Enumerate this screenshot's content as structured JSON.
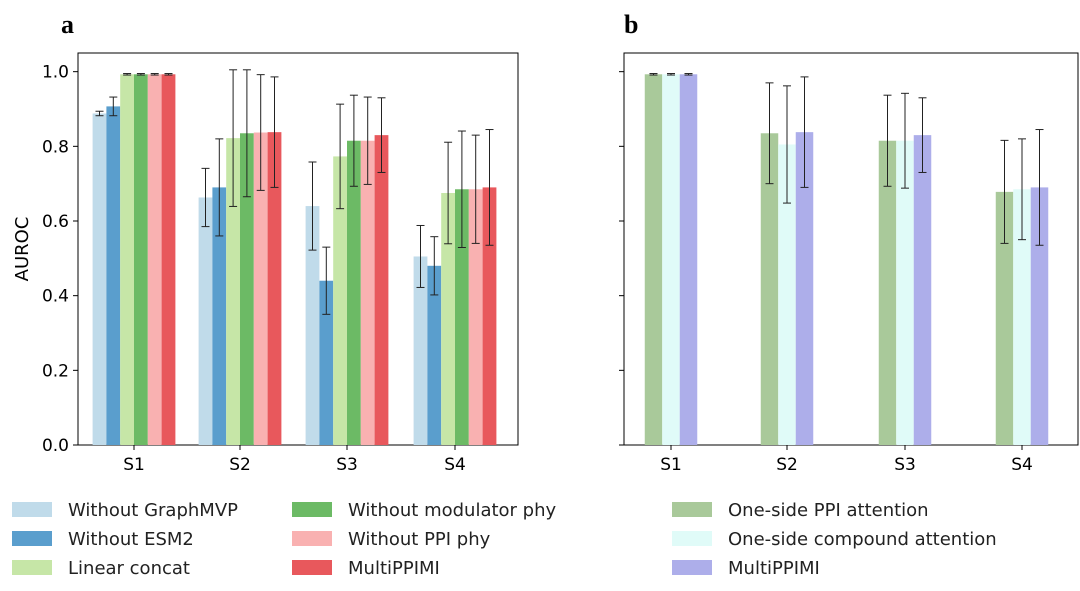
{
  "chart_data": [
    {
      "panel": "a",
      "type": "bar",
      "ylabel": "AUROC",
      "ylim": [
        0,
        1.05
      ],
      "yticks": [
        "0.0",
        "0.2",
        "0.4",
        "0.6",
        "0.8",
        "1.0"
      ],
      "categories": [
        "S1",
        "S2",
        "S3",
        "S4"
      ],
      "series": [
        {
          "name": "Without GraphMVP",
          "color": "#c0dbea",
          "values": [
            0.888,
            0.663,
            0.64,
            0.505
          ],
          "errors": [
            0.006,
            0.078,
            0.118,
            0.083
          ]
        },
        {
          "name": "Without ESM2",
          "color": "#5a9ecd",
          "values": [
            0.907,
            0.69,
            0.44,
            0.48
          ],
          "errors": [
            0.025,
            0.13,
            0.09,
            0.078
          ]
        },
        {
          "name": "Linear concat",
          "color": "#c6e6a7",
          "values": [
            0.993,
            0.822,
            0.773,
            0.675
          ],
          "errors": [
            0.002,
            0.183,
            0.14,
            0.136
          ]
        },
        {
          "name": "Without modulator phy",
          "color": "#6cba65",
          "values": [
            0.993,
            0.835,
            0.815,
            0.685
          ],
          "errors": [
            0.002,
            0.17,
            0.122,
            0.156
          ]
        },
        {
          "name": "Without PPI phy",
          "color": "#f9b1b1",
          "values": [
            0.993,
            0.837,
            0.815,
            0.685
          ],
          "errors": [
            0.002,
            0.155,
            0.117,
            0.145
          ]
        },
        {
          "name": "MultiPPIMI",
          "color": "#e8585c",
          "values": [
            0.993,
            0.838,
            0.83,
            0.69
          ],
          "errors": [
            0.002,
            0.148,
            0.1,
            0.155
          ]
        }
      ]
    },
    {
      "panel": "b",
      "type": "bar",
      "ylim": [
        0,
        1.05
      ],
      "categories": [
        "S1",
        "S2",
        "S3",
        "S4"
      ],
      "series": [
        {
          "name": "One-side PPI attention",
          "color": "#a9c99a",
          "values": [
            0.993,
            0.835,
            0.815,
            0.678
          ],
          "errors": [
            0.002,
            0.135,
            0.122,
            0.138
          ]
        },
        {
          "name": "One-side compound attention",
          "color": "#e0fbf8",
          "values": [
            0.993,
            0.805,
            0.815,
            0.685
          ],
          "errors": [
            0.002,
            0.157,
            0.127,
            0.135
          ]
        },
        {
          "name": "MultiPPIMI",
          "color": "#adaeea",
          "values": [
            0.993,
            0.838,
            0.83,
            0.69
          ],
          "errors": [
            0.002,
            0.148,
            0.1,
            0.155
          ]
        }
      ]
    }
  ],
  "legend_a_order": [
    0,
    3,
    1,
    4,
    2,
    5
  ]
}
